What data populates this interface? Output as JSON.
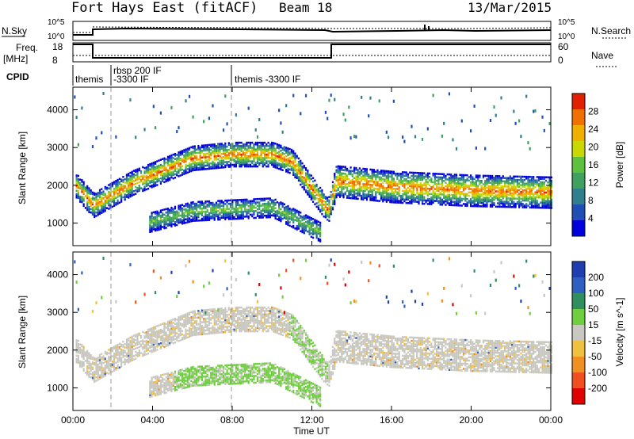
{
  "header": {
    "station": "Fort Hays East (fitACF)",
    "beam": "Beam 18",
    "date": "13/Mar/2015"
  },
  "top_panels": {
    "nsky_label": "N.Sky",
    "nsky_ticks": [
      "10^5",
      "10^0"
    ],
    "nsearch_label": "N.Search",
    "nsearch_ticks": [
      "10^5",
      "10^0"
    ],
    "freq_label": "Freq.",
    "freq_unit": "[MHz]",
    "freq_ticks": [
      "18",
      "8"
    ],
    "nave_label": "Nave",
    "nave_ticks": [
      "60",
      "0"
    ],
    "cpid_label": "CPID",
    "cpid_segments": [
      {
        "label": "themis",
        "start_h": 0.0
      },
      {
        "label": "rbsp 200 IF",
        "start_h": 1.9
      },
      {
        "label": "-3300 IF",
        "start_h": 1.9
      },
      {
        "label": "themis -3300 IF",
        "start_h": 7.9
      }
    ]
  },
  "chart_data": [
    {
      "type": "heatmap",
      "title": "",
      "xlabel": "Time UT",
      "ylabel": "Slant Range [km]",
      "xlim": [
        0,
        24
      ],
      "ylim": [
        400,
        4600
      ],
      "x_ticks": [
        "00:00",
        "04:00",
        "08:00",
        "12:00",
        "16:00",
        "20:00",
        "00:00"
      ],
      "y_ticks": [
        1000,
        2000,
        3000,
        4000
      ],
      "colorbar": {
        "label": "Power [dB]",
        "ticks": [
          4,
          8,
          12,
          16,
          20,
          24,
          28
        ],
        "range": [
          0,
          32
        ],
        "colors": [
          "#0000dd",
          "#1f4fb5",
          "#2f7f8f",
          "#3fa060",
          "#5fbf3f",
          "#c8d800",
          "#f0b000",
          "#f07000",
          "#e02000"
        ]
      },
      "features": [
        {
          "name": "main band",
          "points": [
            [
              0.1,
              2000
            ],
            [
              1.0,
              1450
            ],
            [
              3.0,
              2050
            ],
            [
              6.0,
              2700
            ],
            [
              8.0,
              2800
            ],
            [
              10.0,
              2800
            ],
            [
              11.0,
              2600
            ],
            [
              12.8,
              1300
            ],
            [
              13.2,
              2100
            ],
            [
              16.0,
              1950
            ],
            [
              20.0,
              1850
            ],
            [
              24.0,
              1800
            ]
          ]
        },
        {
          "name": "lower band",
          "points": [
            [
              3.8,
              1000
            ],
            [
              6.0,
              1300
            ],
            [
              10.0,
              1400
            ],
            [
              12.4,
              750
            ]
          ]
        }
      ]
    },
    {
      "type": "heatmap",
      "title": "",
      "xlabel": "Time UT",
      "ylabel": "Slant Range [km]",
      "xlim": [
        0,
        24
      ],
      "ylim": [
        400,
        4600
      ],
      "x_ticks": [
        "00:00",
        "04:00",
        "08:00",
        "12:00",
        "16:00",
        "20:00",
        "00:00"
      ],
      "y_ticks": [
        1000,
        2000,
        3000,
        4000
      ],
      "colorbar": {
        "label": "Velocity [m s^-1]",
        "ticks": [
          200,
          100,
          50,
          15,
          -15,
          -50,
          -100,
          -200
        ],
        "colors": [
          "#1f3fb0",
          "#2f5fc0",
          "#2f8f5f",
          "#6fcf3f",
          "#c8c8c0",
          "#f0c040",
          "#f09020",
          "#f05020",
          "#e00000"
        ]
      }
    }
  ]
}
